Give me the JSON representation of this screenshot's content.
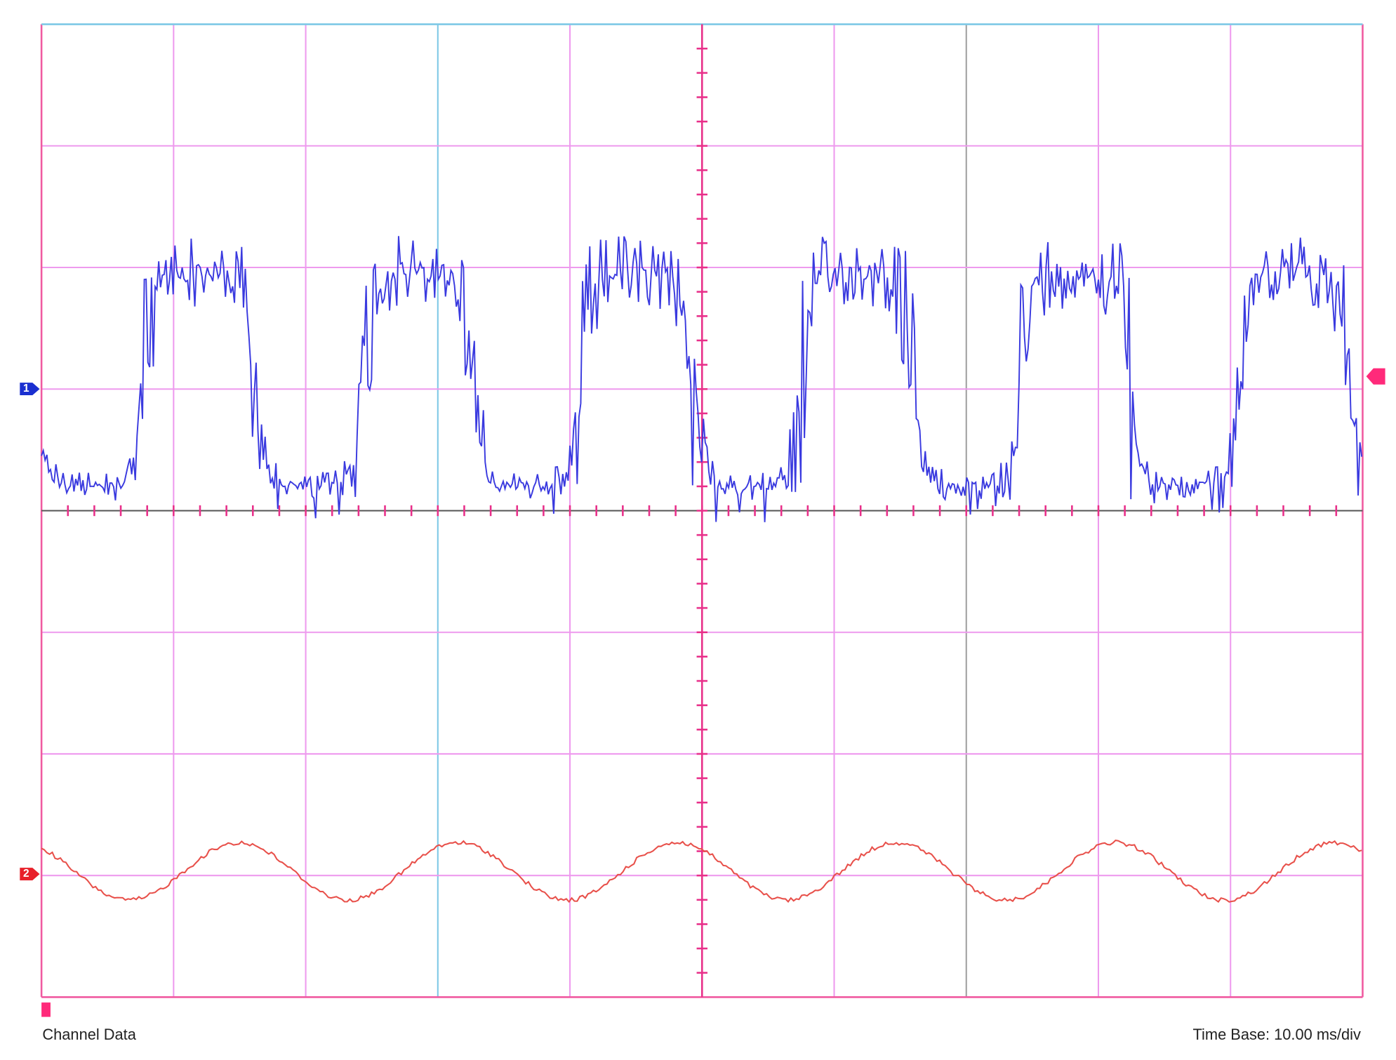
{
  "screen": {
    "channel_label": "Channel Data",
    "time_base": "Time Base: 10.00 ms/div",
    "markers": [
      "1",
      "2"
    ]
  }
}
